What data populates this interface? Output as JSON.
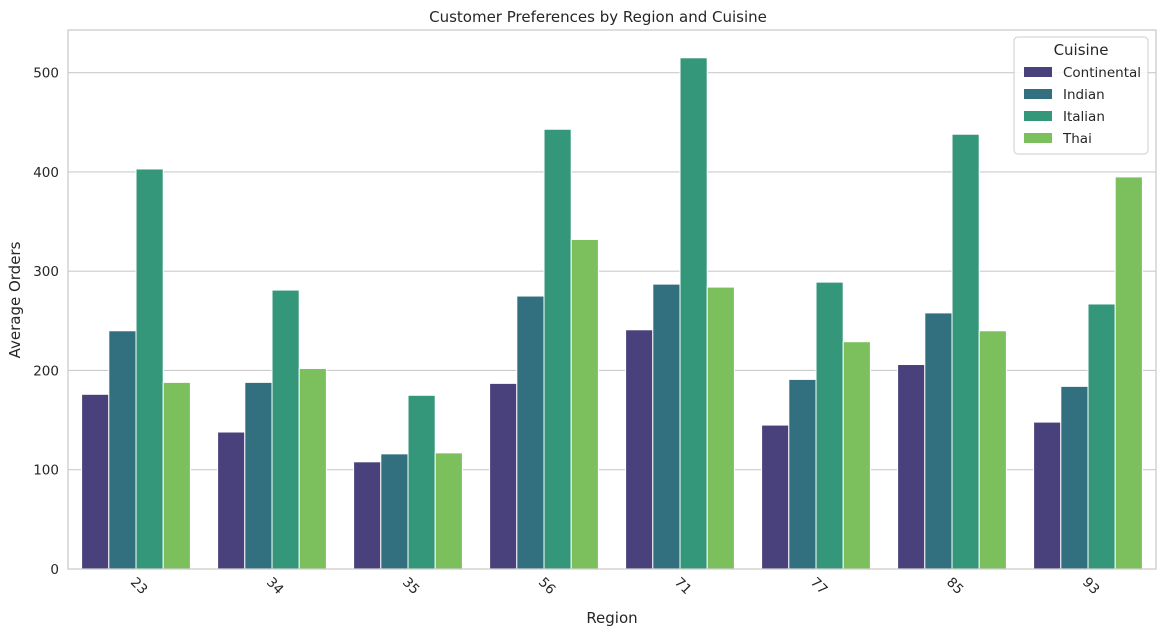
{
  "chart_data": {
    "type": "bar",
    "title": "Customer Preferences by Region and Cuisine",
    "xlabel": "Region",
    "ylabel": "Average Orders",
    "categories": [
      "23",
      "34",
      "35",
      "56",
      "71",
      "77",
      "85",
      "93"
    ],
    "ylim": [
      0,
      543
    ],
    "yticks": [
      0,
      100,
      200,
      300,
      400,
      500
    ],
    "grid": "y",
    "legend": {
      "title": "Cuisine",
      "placement": "top-right"
    },
    "series": [
      {
        "name": "Continental",
        "color": "#48417b",
        "values": [
          176,
          138,
          108,
          187,
          241,
          145,
          206,
          148
        ]
      },
      {
        "name": "Indian",
        "color": "#33707f",
        "values": [
          240,
          188,
          116,
          275,
          287,
          191,
          258,
          184
        ]
      },
      {
        "name": "Italian",
        "color": "#34977a",
        "values": [
          403,
          281,
          175,
          443,
          515,
          289,
          438,
          267
        ]
      },
      {
        "name": "Thai",
        "color": "#7cbf5d",
        "values": [
          188,
          202,
          117,
          332,
          284,
          229,
          240,
          395
        ]
      }
    ]
  }
}
